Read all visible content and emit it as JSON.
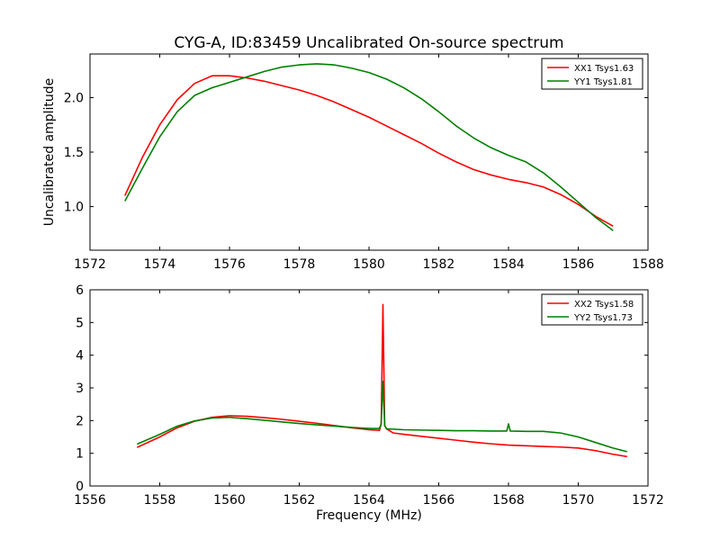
{
  "figure": {
    "title": "CYG-A, ID:83459 Uncalibrated On-source spectrum",
    "colors": {
      "xx": "#ff0000",
      "yy": "#008000"
    }
  },
  "chart_data": [
    {
      "type": "line",
      "title": "CYG-A, ID:83459 Uncalibrated On-source spectrum",
      "xlabel": "",
      "ylabel": "Uncalibrated amplitude",
      "xlim": [
        1572,
        1588
      ],
      "ylim": [
        0.6,
        2.4
      ],
      "xticks": [
        "1572",
        "1574",
        "1576",
        "1578",
        "1580",
        "1582",
        "1584",
        "1586",
        "1588"
      ],
      "yticks": [
        "1.0",
        "1.5",
        "2.0"
      ],
      "legend_position": "top-right",
      "series": [
        {
          "name": "XX1 Tsys1.63",
          "color": "#ff0000",
          "x": [
            1573.0,
            1573.5,
            1574.0,
            1574.5,
            1575.0,
            1575.5,
            1576.0,
            1576.5,
            1577.0,
            1577.5,
            1578.0,
            1578.5,
            1579.0,
            1579.5,
            1580.0,
            1580.5,
            1581.0,
            1581.5,
            1582.0,
            1582.5,
            1583.0,
            1583.5,
            1584.0,
            1584.5,
            1585.0,
            1585.5,
            1586.0,
            1586.5,
            1587.0
          ],
          "y": [
            1.1,
            1.45,
            1.75,
            1.98,
            2.13,
            2.2,
            2.2,
            2.18,
            2.15,
            2.11,
            2.07,
            2.02,
            1.96,
            1.89,
            1.82,
            1.74,
            1.66,
            1.58,
            1.49,
            1.41,
            1.34,
            1.29,
            1.25,
            1.22,
            1.18,
            1.11,
            1.02,
            0.91,
            0.82
          ]
        },
        {
          "name": "YY1 Tsys1.81",
          "color": "#008000",
          "x": [
            1573.0,
            1573.5,
            1574.0,
            1574.5,
            1575.0,
            1575.5,
            1576.0,
            1576.5,
            1577.0,
            1577.5,
            1578.0,
            1578.5,
            1579.0,
            1579.5,
            1580.0,
            1580.5,
            1581.0,
            1581.5,
            1582.0,
            1582.5,
            1583.0,
            1583.5,
            1584.0,
            1584.5,
            1585.0,
            1585.5,
            1586.0,
            1586.5,
            1587.0
          ],
          "y": [
            1.05,
            1.35,
            1.64,
            1.87,
            2.02,
            2.09,
            2.14,
            2.19,
            2.24,
            2.28,
            2.3,
            2.31,
            2.3,
            2.27,
            2.23,
            2.17,
            2.09,
            1.99,
            1.87,
            1.74,
            1.63,
            1.54,
            1.47,
            1.41,
            1.31,
            1.18,
            1.04,
            0.9,
            0.78
          ]
        }
      ]
    },
    {
      "type": "line",
      "title": "",
      "xlabel": "Frequency (MHz)",
      "ylabel": "",
      "xlim": [
        1556,
        1572
      ],
      "ylim": [
        0,
        6
      ],
      "xticks": [
        "1556",
        "1558",
        "1560",
        "1562",
        "1564",
        "1566",
        "1568",
        "1570",
        "1572"
      ],
      "yticks": [
        "0",
        "1",
        "2",
        "3",
        "4",
        "5",
        "6"
      ],
      "legend_position": "top-right",
      "series": [
        {
          "name": "XX2 Tsys1.58",
          "color": "#ff0000",
          "x": [
            1557.35,
            1558.0,
            1558.5,
            1559.0,
            1559.5,
            1560.0,
            1560.5,
            1561.0,
            1561.5,
            1562.0,
            1562.5,
            1563.0,
            1563.5,
            1564.0,
            1564.3,
            1564.35,
            1564.4,
            1564.45,
            1564.5,
            1564.7,
            1565.0,
            1565.5,
            1566.0,
            1566.5,
            1567.0,
            1567.5,
            1568.0,
            1568.5,
            1569.0,
            1569.5,
            1570.0,
            1570.5,
            1571.0,
            1571.4
          ],
          "y": [
            1.18,
            1.5,
            1.78,
            1.98,
            2.1,
            2.15,
            2.13,
            2.09,
            2.04,
            1.98,
            1.92,
            1.85,
            1.78,
            1.72,
            1.7,
            1.9,
            5.55,
            1.85,
            1.75,
            1.62,
            1.58,
            1.52,
            1.46,
            1.4,
            1.34,
            1.29,
            1.25,
            1.23,
            1.21,
            1.19,
            1.16,
            1.08,
            0.97,
            0.9
          ]
        },
        {
          "name": "YY2 Tsys1.73",
          "color": "#008000",
          "x": [
            1557.35,
            1558.0,
            1558.5,
            1559.0,
            1559.5,
            1560.0,
            1560.5,
            1561.0,
            1561.5,
            1562.0,
            1562.5,
            1563.0,
            1563.5,
            1564.0,
            1564.3,
            1564.35,
            1564.4,
            1564.45,
            1564.5,
            1565.0,
            1565.5,
            1566.0,
            1566.5,
            1567.0,
            1567.5,
            1567.95,
            1568.0,
            1568.05,
            1568.5,
            1569.0,
            1569.5,
            1570.0,
            1570.5,
            1571.0,
            1571.4
          ],
          "y": [
            1.28,
            1.58,
            1.83,
            1.99,
            2.08,
            2.1,
            2.06,
            2.01,
            1.96,
            1.91,
            1.87,
            1.83,
            1.79,
            1.76,
            1.76,
            1.9,
            3.2,
            1.85,
            1.75,
            1.72,
            1.71,
            1.7,
            1.69,
            1.69,
            1.68,
            1.68,
            1.9,
            1.68,
            1.67,
            1.67,
            1.62,
            1.5,
            1.33,
            1.16,
            1.05
          ]
        }
      ]
    }
  ]
}
